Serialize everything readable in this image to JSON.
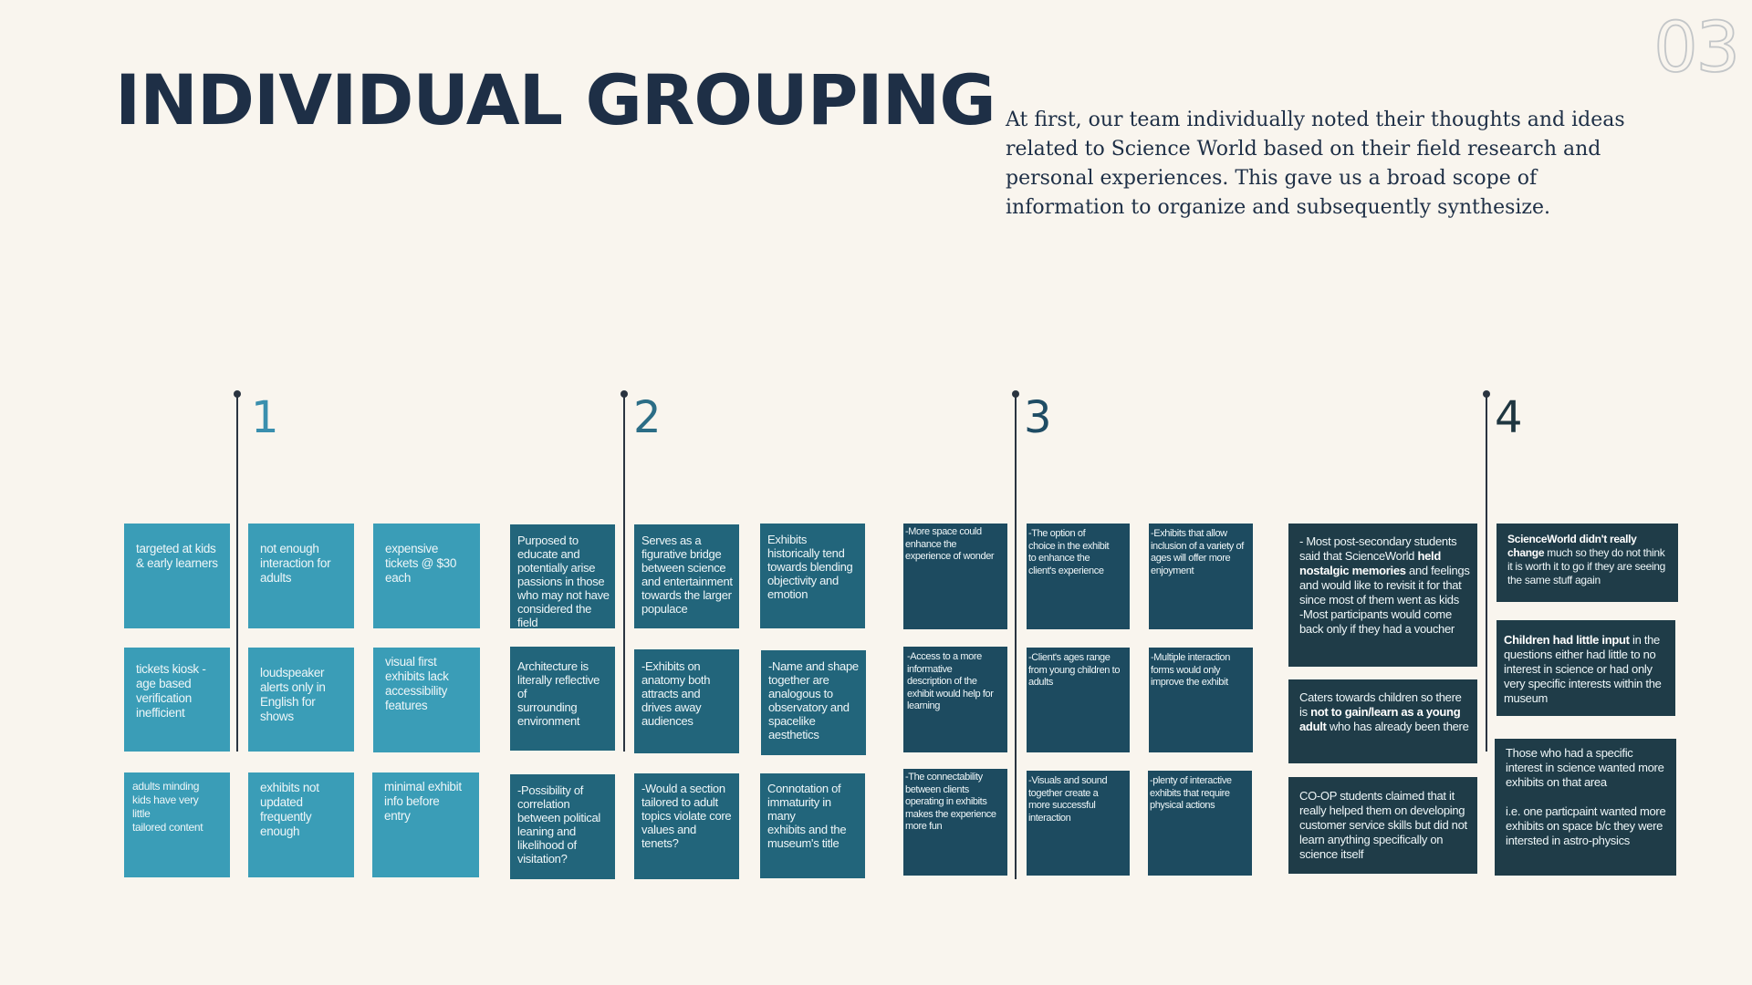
{
  "page": {
    "number": "03",
    "title": "INDIVIDUAL GROUPING",
    "intro": "At first, our team individually noted their thoughts and ideas related to Science World based on their field research and personal experiences. This gave us a broad scope of information to organize and subsequently synthesize."
  },
  "colors": {
    "background": "#f9f5ee",
    "title": "#1e2f46",
    "group1_note": "#3a9db7",
    "group2_note": "#22657b",
    "group3_note": "#1d4b60",
    "group4_note": "#1f3c48",
    "group1_label": "#3a8fae",
    "group2_label": "#2b6d86",
    "group3_label": "#1f4c64",
    "group4_label": "#1f3640"
  },
  "groups": [
    {
      "label": "1",
      "notes": [
        "targeted at kids\n& early learners",
        "not enough\ninteraction for\nadults",
        "expensive\ntickets @ $30\neach",
        "tickets kiosk -\nage based\nverification\ninefficient",
        "loudspeaker\nalerts only in\nEnglish for\nshows",
        "visual first\nexhibits lack\naccessibility\nfeatures",
        "adults minding\nkids have very little\ntailored content",
        "exhibits not\nupdated\nfrequently\nenough",
        "minimal exhibit\ninfo before\nentry"
      ]
    },
    {
      "label": "2",
      "notes": [
        "Purposed to\neducate and\npotentially arise\npassions in those\nwho may not have\nconsidered the\nfield",
        "Serves as a\nfigurative bridge\nbetween science\nand entertainment\ntowards the larger\npopulace",
        "Exhibits\nhistorically tend\ntowards blending\nobjectivity and\nemotion",
        "Architecture is\nliterally reflective of\nsurrounding\nenvironment",
        "-Exhibits on\nanatomy both\nattracts and\ndrives away\naudiences",
        "-Name and shape\ntogether are\nanalogous to\nobservatory and\nspacelike\naesthetics",
        "-Possibility of\ncorrelation\nbetween political\nleaning and\nlikelihood of\nvisitation?",
        "-Would a section\ntailored to adult\ntopics violate core\nvalues and tenets?",
        "Connotation of\nimmaturity in many\nexhibits and the\nmuseum's title"
      ]
    },
    {
      "label": "3",
      "notes": [
        "-More space could\nenhance the\nexperience of wonder",
        "-The option of\nchoice in the exhibit\nto enhance the\nclient's experience",
        "-Exhibits that allow\ninclusion of a variety of\nages will offer more\nenjoyment",
        "-Access to a more\ninformative\ndescription of the\nexhibit would help for\nlearning",
        "-Client's ages range\nfrom young children to\nadults",
        "-Multiple interaction\nforms would only\nimprove the exhibit",
        "-The connectability\nbetween clients\noperating in exhibits\nmakes the experience\nmore fun",
        "-Visuals and sound\ntogether create a\nmore successful\ninteraction",
        "-plenty of interactive\nexhibits that require\nphysical actions"
      ]
    },
    {
      "label": "4",
      "notes": [
        {
          "lead": "- Most post-secondary students said that ScienceWorld ",
          "bold": "held nostalgic memories",
          "rest": " and feelings and would like to revisit it for that since most of them went as kids\n-Most participants would come back only if they had a voucher"
        },
        {
          "lead": "",
          "bold": "ScienceWorld didn't really change",
          "rest": " much so they do not think it is worth it to go if they are seeing the same stuff again"
        },
        {
          "lead": "Caters towards children so there is ",
          "bold": "not to gain/learn as a young adult",
          "rest": " who has already been there"
        },
        {
          "lead": "",
          "bold": "Children had little input",
          "rest": " in the questions either had little to no interest in science or had only very specific interests within the museum"
        },
        {
          "lead": "CO-OP students claimed that it really helped them on developing customer service skills but did not learn anything specifically on science itself",
          "bold": "",
          "rest": ""
        },
        {
          "lead": "Those who had a specific interest in science wanted more exhibits on that area\n\ni.e. one particpaint wanted more exhibits on space b/c they were intersted in astro-physics",
          "bold": "",
          "rest": ""
        }
      ]
    }
  ]
}
